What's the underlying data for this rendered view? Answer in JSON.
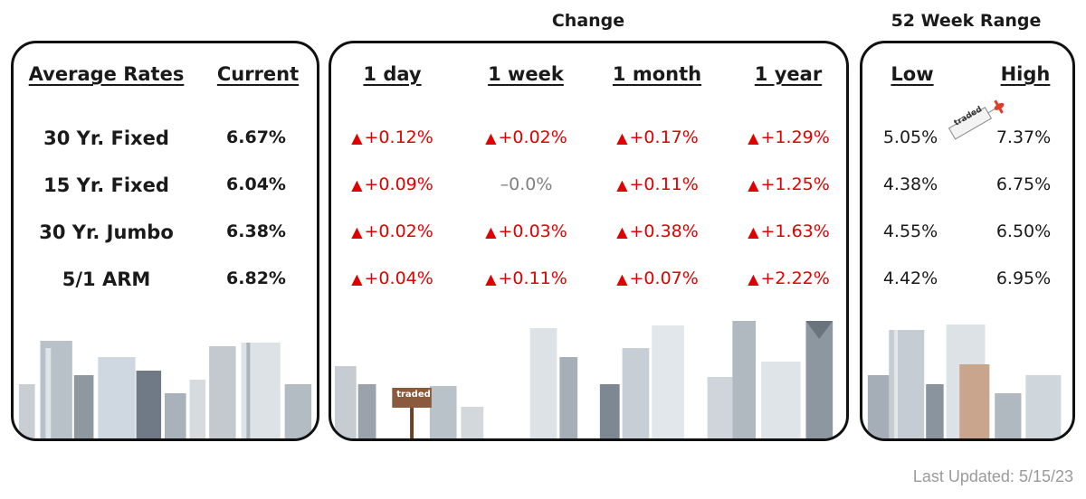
{
  "groups": {
    "change": "Change",
    "range": "52 Week Range"
  },
  "headers": {
    "average_rates": "Average Rates",
    "current": "Current",
    "d1": "1 day",
    "w1": "1 week",
    "m1": "1 month",
    "y1": "1 year",
    "low": "Low",
    "high": "High"
  },
  "rows": [
    {
      "label": "30 Yr. Fixed",
      "current": "6.67%",
      "d1": "+0.12%",
      "w1": "+0.02%",
      "m1": "+0.17%",
      "y1": "+1.29%",
      "low": "5.05%",
      "high": "7.37%"
    },
    {
      "label": "15 Yr. Fixed",
      "current": "6.04%",
      "d1": "+0.09%",
      "w1": "–0.0%",
      "m1": "+0.11%",
      "y1": "+1.25%",
      "low": "4.38%",
      "high": "6.75%"
    },
    {
      "label": "30 Yr. Jumbo",
      "current": "6.38%",
      "d1": "+0.02%",
      "w1": "+0.03%",
      "m1": "+0.38%",
      "y1": "+1.63%",
      "low": "4.55%",
      "high": "6.50%"
    },
    {
      "label": "5/1 ARM",
      "current": "6.82%",
      "d1": "+0.04%",
      "w1": "+0.11%",
      "m1": "+0.07%",
      "y1": "+2.22%",
      "low": "4.42%",
      "high": "6.95%"
    }
  ],
  "up_arrow": "▲",
  "footer": "Last Updated: 5/15/23",
  "sign_text": "traded",
  "colors": {
    "up": "#e00000",
    "flat": "#808080",
    "border": "#111111",
    "sign": "#8b5a3c"
  }
}
